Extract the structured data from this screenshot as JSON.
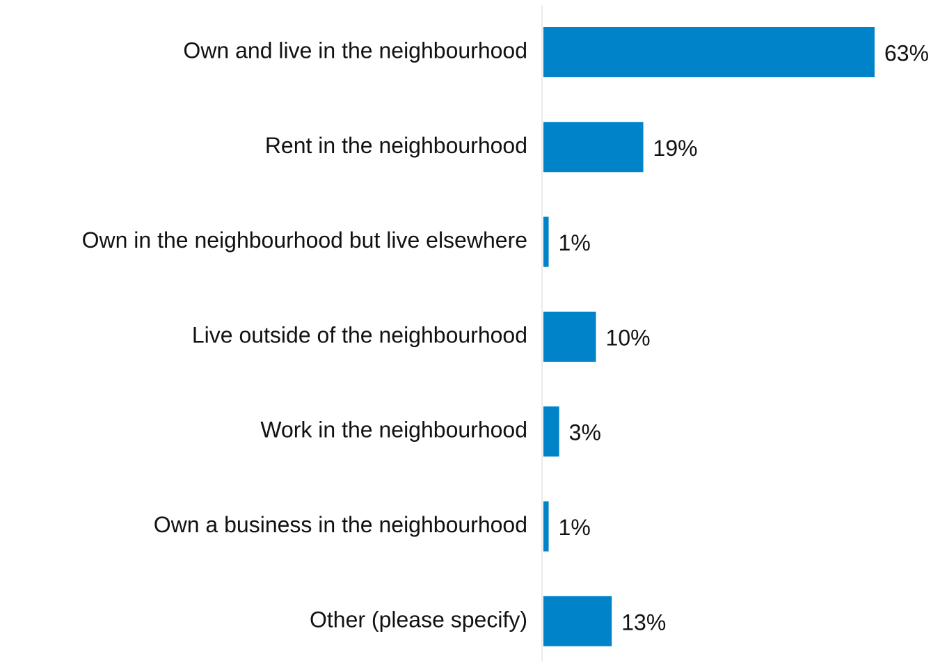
{
  "chart_data": {
    "type": "bar",
    "orientation": "horizontal",
    "categories": [
      "Own and live in the neighbourhood",
      "Rent in the neighbourhood",
      "Own in the neighbourhood but live elsewhere",
      "Live outside of the neighbourhood",
      "Work in the neighbourhood",
      "Own a business in the neighbourhood",
      "Other (please specify)"
    ],
    "values": [
      63,
      19,
      1,
      10,
      3,
      1,
      13
    ],
    "value_labels": [
      "63%",
      "19%",
      "1%",
      "10%",
      "3%",
      "1%",
      "13%"
    ],
    "color": "#0083c8"
  }
}
